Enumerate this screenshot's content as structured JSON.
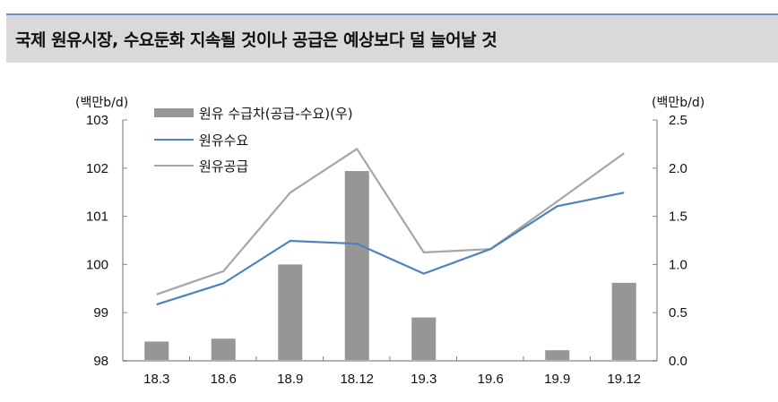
{
  "header": {
    "title": "국제 원유시장, 수요둔화 지속될 것이나 공급은 예상보다 덜 늘어날 것"
  },
  "chart_data": {
    "type": "bar+line",
    "title": "국제 원유시장, 수요둔화 지속될 것이나 공급은 예상보다 덜 늘어날 것",
    "categories": [
      "18.3",
      "18.6",
      "18.9",
      "18.12",
      "19.3",
      "19.6",
      "19.9",
      "19.12"
    ],
    "left_axis": {
      "unit": "(백만b/d)",
      "ylim": [
        98,
        103
      ],
      "ticks": [
        "98",
        "99",
        "100",
        "101",
        "102",
        "103"
      ]
    },
    "right_axis": {
      "unit": "(백만b/d)",
      "ylim": [
        0.0,
        2.5
      ],
      "ticks": [
        "0.0",
        "0.5",
        "1.0",
        "1.5",
        "2.0",
        "2.5"
      ]
    },
    "series": [
      {
        "name": "원유 수급차(공급-수요)(우)",
        "type": "bar",
        "axis": "right",
        "color": "#969696",
        "values": [
          0.2,
          0.23,
          1.0,
          1.97,
          0.45,
          0.0,
          0.11,
          0.81
        ]
      },
      {
        "name": "원유수요",
        "type": "line",
        "axis": "left",
        "color": "#4f81bd",
        "values": [
          99.17,
          99.61,
          100.49,
          100.43,
          99.81,
          100.32,
          101.21,
          101.49
        ]
      },
      {
        "name": "원유공급",
        "type": "line",
        "axis": "left",
        "color": "#a6a6a6",
        "values": [
          99.38,
          99.86,
          101.49,
          102.4,
          100.25,
          100.32,
          101.31,
          102.31
        ]
      }
    ],
    "legend_position": "top-left",
    "grid": false
  },
  "legend": {
    "items": [
      {
        "label": "원유 수급차(공급-수요)(우)",
        "color": "#969696"
      },
      {
        "label": "원유수요",
        "color": "#4f81bd"
      },
      {
        "label": "원유공급",
        "color": "#a6a6a6"
      }
    ]
  }
}
